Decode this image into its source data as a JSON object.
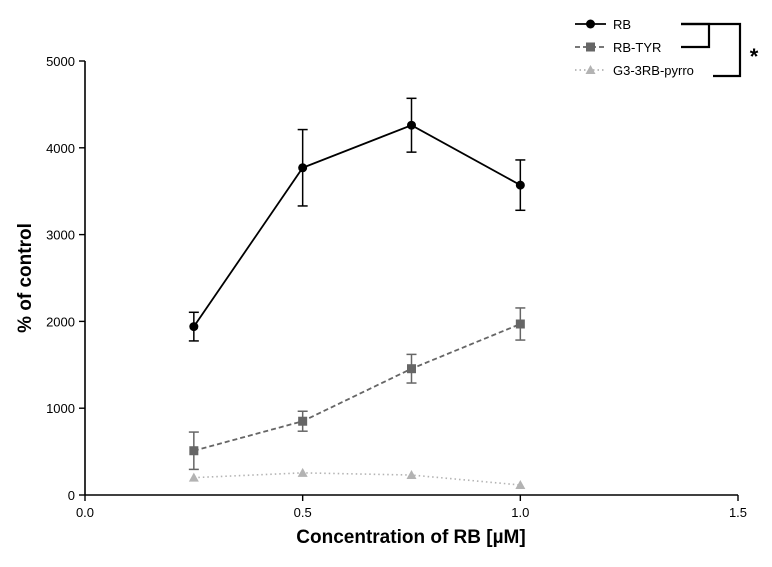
{
  "chart_data": {
    "type": "line",
    "title": "",
    "xlabel": "Concentration of RB [µM]",
    "ylabel": "% of control",
    "xlim": [
      0,
      1.5
    ],
    "ylim": [
      0,
      5000
    ],
    "x_ticks": [
      0,
      0.5,
      1,
      1.5
    ],
    "x_tick_labels": [
      "0.0",
      "0.5",
      "1.0",
      "1.5"
    ],
    "y_ticks": [
      0,
      1000,
      2000,
      3000,
      4000,
      5000
    ],
    "y_tick_labels": [
      "0",
      "1000",
      "2000",
      "3000",
      "4000",
      "5000"
    ],
    "grid": false,
    "legend_position": "top-right",
    "x": [
      0.25,
      0.5,
      0.75,
      1.0
    ],
    "series": [
      {
        "name": "RB",
        "marker": "circle",
        "line_style": "solid",
        "color": "#000000",
        "values": [
          1940,
          3770,
          4260,
          3570
        ],
        "errors": [
          165,
          440,
          310,
          290
        ]
      },
      {
        "name": "RB-TYR",
        "marker": "square",
        "line_style": "dashed",
        "color": "#666666",
        "values": [
          510,
          850,
          1455,
          1970
        ],
        "errors": [
          215,
          115,
          165,
          185
        ]
      },
      {
        "name": "G3-3RB-pyrro",
        "marker": "triangle",
        "line_style": "dotted",
        "color": "#b3b3b3",
        "values": [
          200,
          255,
          230,
          115
        ],
        "errors": [
          0,
          0,
          0,
          0
        ]
      }
    ],
    "annotations": [
      {
        "text": "*"
      }
    ]
  }
}
